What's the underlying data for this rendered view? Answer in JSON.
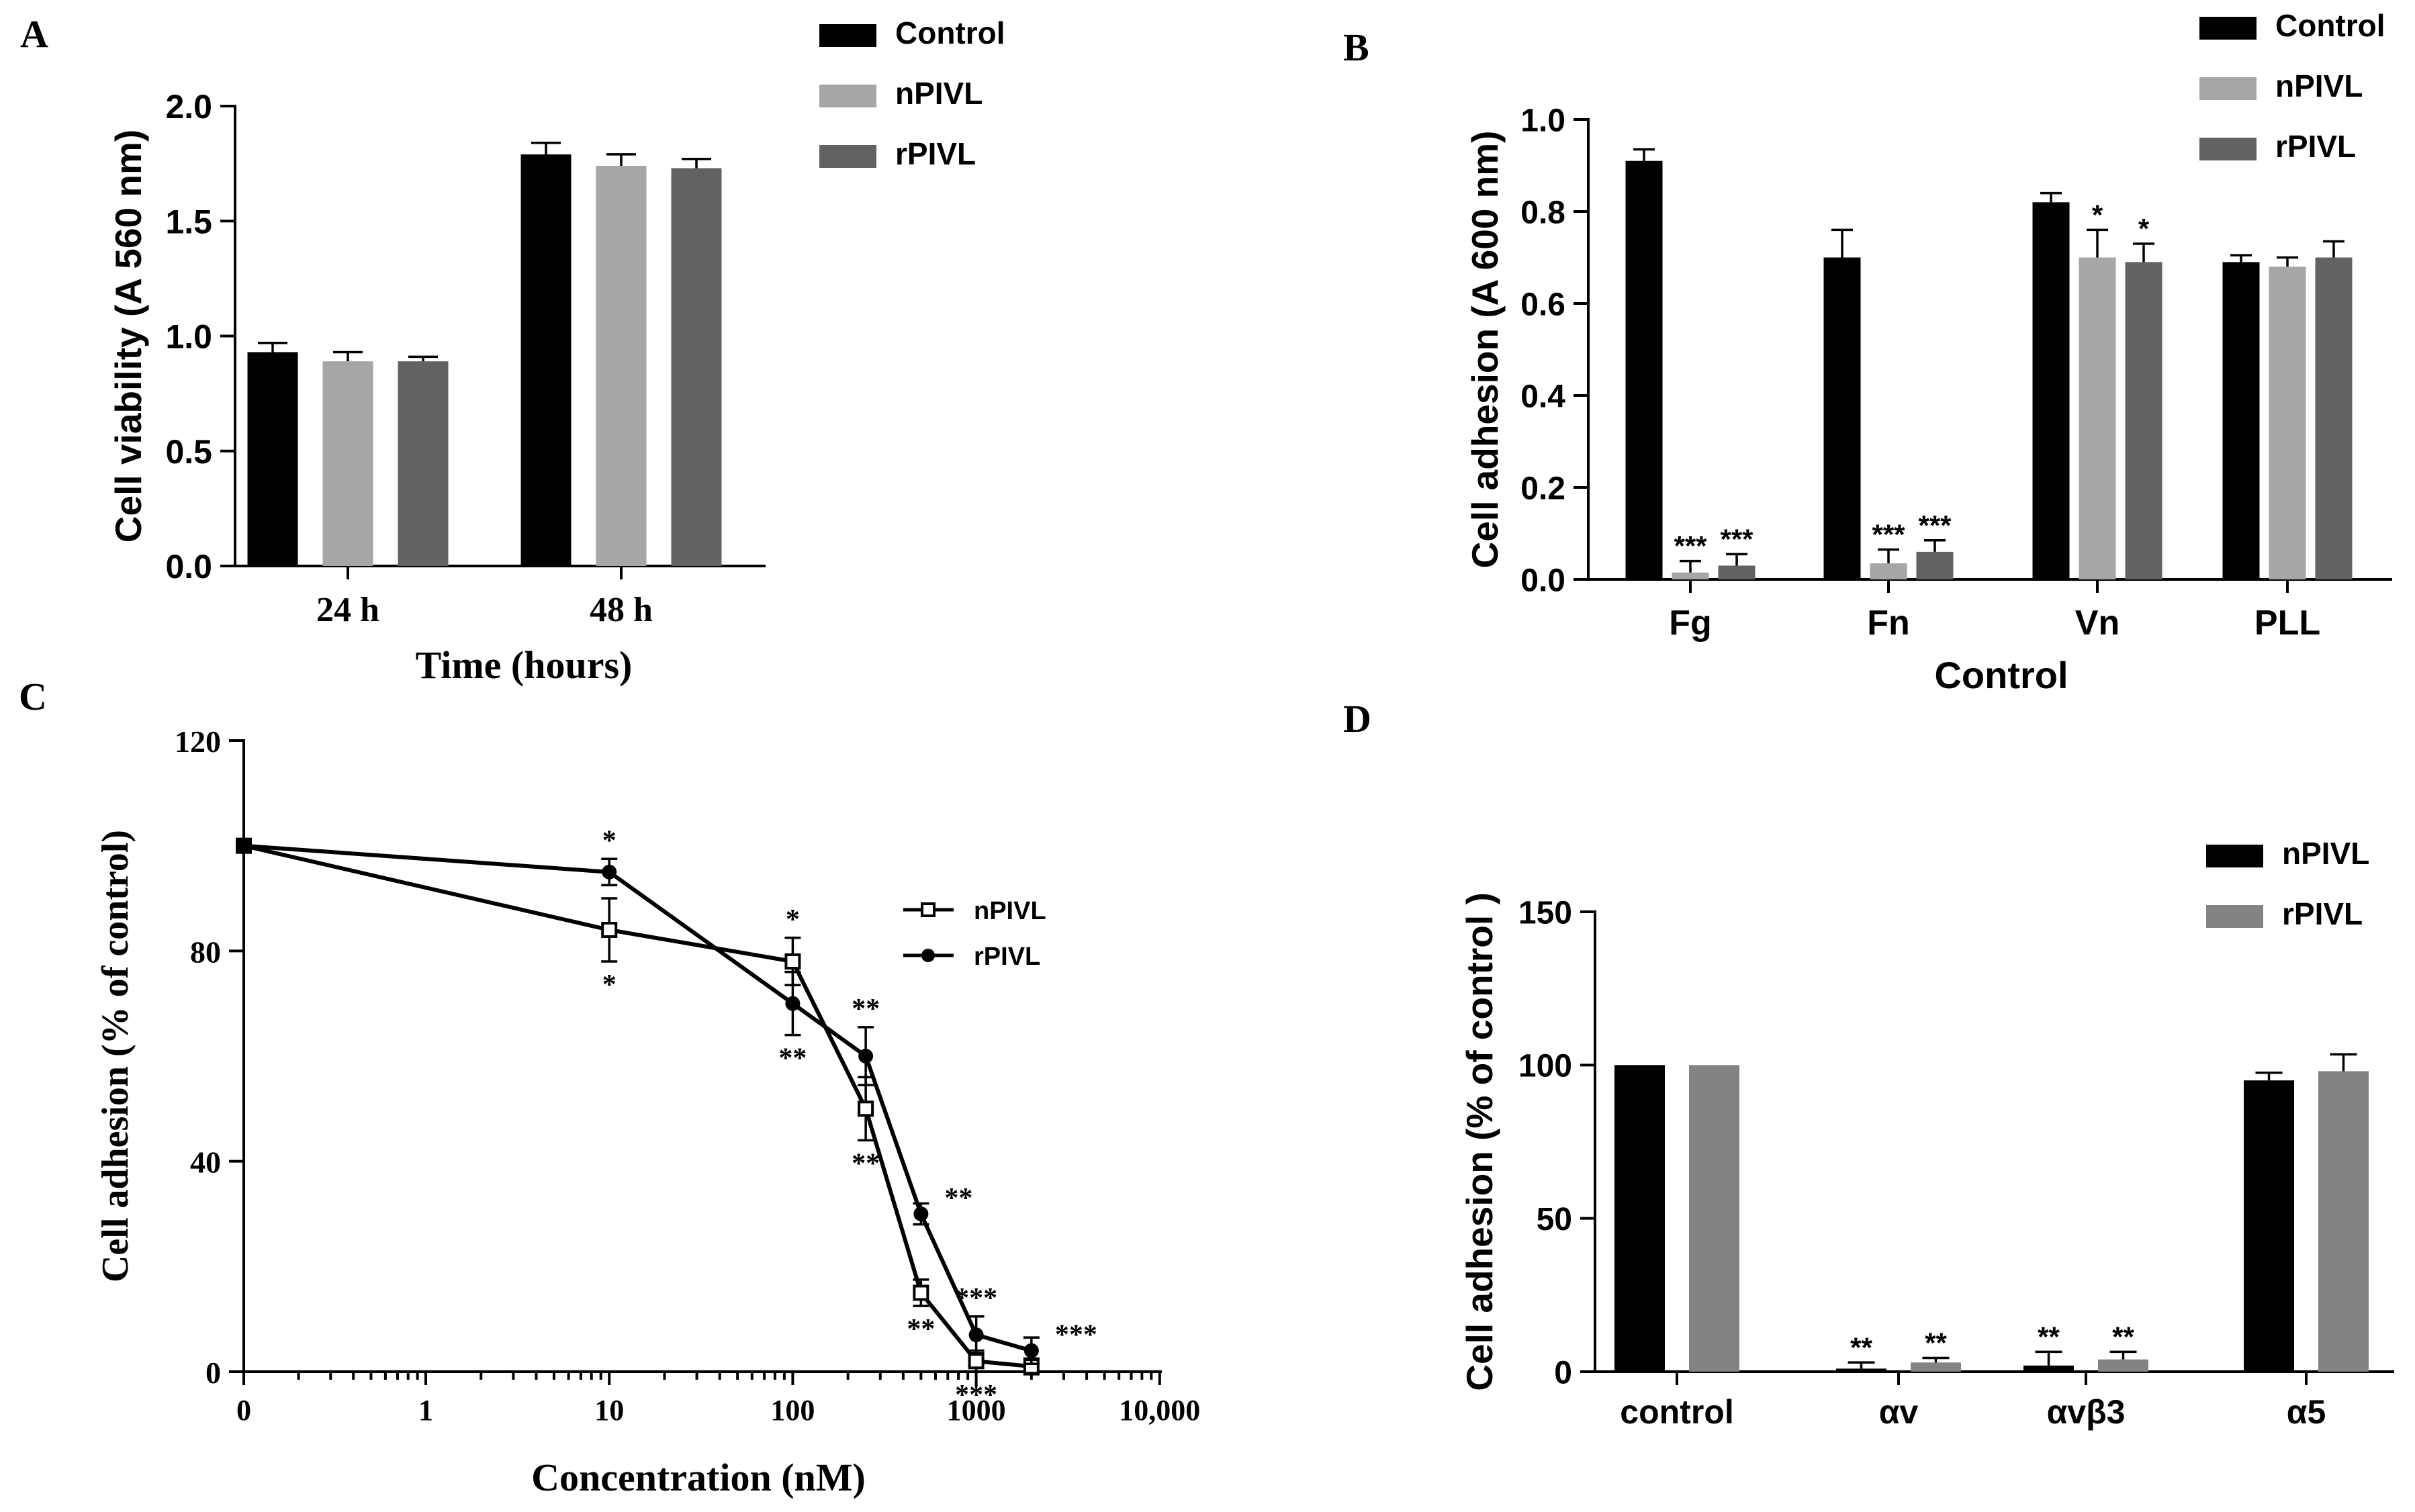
{
  "colors": {
    "control": "#000000",
    "npivl_light": "#a6a6a6",
    "rpivl_dark": "#626262",
    "d_npivl": "#000000",
    "d_rpivl": "#838383"
  },
  "chart_data": [
    {
      "panel": "A",
      "type": "bar",
      "xlabel": "Time (hours)",
      "ylabel": "Cell viability (A 560 nm)",
      "ylim": [
        0,
        2.0
      ],
      "yticks": [
        "0.0",
        "0.5",
        "1.0",
        "1.5",
        "2.0"
      ],
      "categories": [
        "24 h",
        "48 h"
      ],
      "series": [
        {
          "name": "Control",
          "color": "#000000",
          "values": [
            0.93,
            1.79
          ],
          "errors": [
            0.04,
            0.05
          ]
        },
        {
          "name": "nPIVL",
          "color": "#a6a6a6",
          "values": [
            0.89,
            1.74
          ],
          "errors": [
            0.04,
            0.05
          ]
        },
        {
          "name": "rPIVL",
          "color": "#626262",
          "values": [
            0.89,
            1.73
          ],
          "errors": [
            0.02,
            0.04
          ]
        }
      ],
      "legend": [
        "Control",
        "nPIVL",
        "rPIVL"
      ]
    },
    {
      "panel": "B",
      "type": "bar",
      "xlabel": "Control",
      "ylabel": "Cell adhesion (A 600 nm)",
      "ylim": [
        0,
        1.0
      ],
      "yticks": [
        "0.0",
        "0.2",
        "0.4",
        "0.6",
        "0.8",
        "1.0"
      ],
      "categories": [
        "Fg",
        "Fn",
        "Vn",
        "PLL"
      ],
      "series": [
        {
          "name": "Control",
          "color": "#000000",
          "values": [
            0.91,
            0.7,
            0.82,
            0.69
          ],
          "errors": [
            0.025,
            0.06,
            0.02,
            0.015
          ],
          "annotations": [
            "",
            "",
            "",
            ""
          ]
        },
        {
          "name": "nPIVL",
          "color": "#a6a6a6",
          "values": [
            0.015,
            0.035,
            0.7,
            0.68
          ],
          "errors": [
            0.025,
            0.03,
            0.06,
            0.02
          ],
          "annotations": [
            "***",
            "***",
            "*",
            ""
          ]
        },
        {
          "name": "rPIVL",
          "color": "#626262",
          "values": [
            0.03,
            0.06,
            0.69,
            0.7
          ],
          "errors": [
            0.025,
            0.025,
            0.04,
            0.035
          ],
          "annotations": [
            "***",
            "***",
            "*",
            ""
          ]
        }
      ],
      "legend": [
        "Control",
        "nPIVL",
        "rPIVL"
      ]
    },
    {
      "panel": "C",
      "type": "line",
      "xlabel": "Concentration (nM)",
      "ylabel": "Cell adhesion (% of control)",
      "xscale": "log",
      "ylim": [
        0,
        120
      ],
      "yticks": [
        "0",
        "40",
        "80",
        "120"
      ],
      "xticks": [
        "0",
        "1",
        "10",
        "100",
        "1000",
        "10,000"
      ],
      "series": [
        {
          "name": "nPIVL",
          "marker": "open-square",
          "x": [
            0,
            10,
            100,
            250,
            500,
            1000,
            2000
          ],
          "y": [
            100,
            84,
            78,
            50,
            15,
            2,
            1
          ],
          "errors": [
            0,
            6,
            4.5,
            6,
            2.5,
            2,
            1.5
          ],
          "annotations": [
            "",
            "*",
            "*",
            "**",
            "**",
            "***",
            ""
          ]
        },
        {
          "name": "rPIVL",
          "marker": "filled-circle",
          "x": [
            0,
            10,
            100,
            250,
            500,
            1000,
            2000
          ],
          "y": [
            100,
            95,
            70,
            60,
            30,
            7,
            4
          ],
          "errors": [
            0,
            2.5,
            6,
            5.5,
            2,
            3.5,
            2.5
          ],
          "annotations": [
            "",
            "*",
            "**",
            "**",
            "**",
            "***",
            "***"
          ]
        }
      ],
      "legend": [
        "nPIVL",
        "rPIVL"
      ]
    },
    {
      "panel": "D",
      "type": "bar",
      "xlabel": "",
      "ylabel": "Cell adhesion (% of control )",
      "ylim": [
        0,
        150
      ],
      "yticks": [
        "0",
        "50",
        "100",
        "150"
      ],
      "categories": [
        "control",
        "αv",
        "αvβ3",
        "α5"
      ],
      "series": [
        {
          "name": "nPIVL",
          "color": "#000000",
          "values": [
            100,
            1,
            2,
            95
          ],
          "errors": [
            0,
            2,
            4.5,
            2.5
          ],
          "annotations": [
            "",
            "**",
            "**",
            ""
          ]
        },
        {
          "name": "rPIVL",
          "color": "#838383",
          "values": [
            100,
            3,
            4,
            98
          ],
          "errors": [
            0,
            1.5,
            2.5,
            5.5
          ],
          "annotations": [
            "",
            "**",
            "**",
            ""
          ]
        }
      ],
      "legend": [
        "nPIVL",
        "rPIVL"
      ]
    }
  ]
}
